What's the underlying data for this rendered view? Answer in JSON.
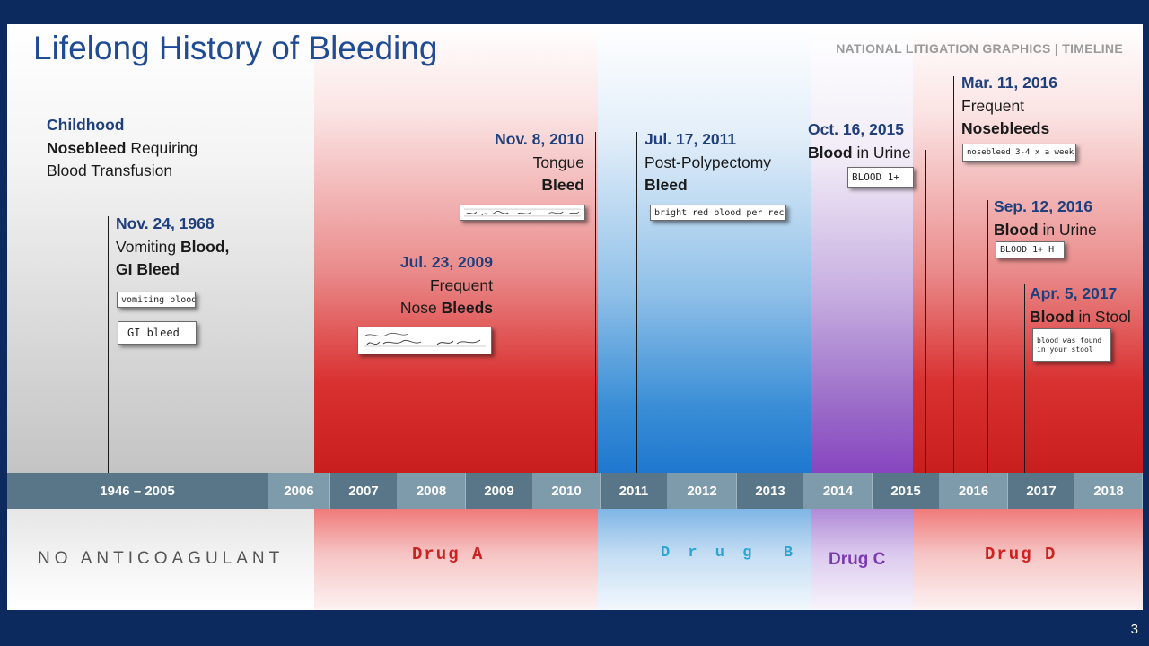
{
  "title": "Lifelong History of Bleeding",
  "brand": "NATIONAL LITIGATION GRAPHICS  | TIMELINE",
  "page_number": "3",
  "colors": {
    "frame": "#0d2a5e",
    "title": "#1f4a94",
    "no_anticoagulant": "#c4c4c4",
    "drug_a": "#c81e1e",
    "drug_b": "#1f78cf",
    "drug_c": "#8745c0",
    "drug_d": "#c81e1e",
    "axis_dark": "#587688",
    "axis_light": "#7e9bac"
  },
  "axis": {
    "labels": [
      "1946 – 2005",
      "2006",
      "2007",
      "2008",
      "2009",
      "2010",
      "2011",
      "2012",
      "2013",
      "2014",
      "2015",
      "2016",
      "2017",
      "2018"
    ]
  },
  "periods": {
    "none": "NO ANTICOAGULANT",
    "drug_a": "Drug A",
    "drug_b": "D r u g  B",
    "drug_c": "Drug C",
    "drug_d": "Drug D"
  },
  "events": {
    "childhood": {
      "date": "Childhood",
      "line1_bold": "Nosebleed",
      "line1_rest": " Requiring",
      "line2": "Blood Transfusion"
    },
    "e1968": {
      "date": "Nov. 24, 1968",
      "line1_plain": "Vomiting ",
      "line1_bold": "Blood,",
      "line2_bold": "GI Bleed",
      "snip1": "vomiting blood",
      "snip2": "GI bleed"
    },
    "e2009": {
      "date": "Jul. 23, 2009",
      "line1": "Frequent",
      "line2_plain": "Nose ",
      "line2_bold": "Bleeds"
    },
    "e2010": {
      "date": "Nov. 8, 2010",
      "line1": "Tongue",
      "line2_bold": "Bleed"
    },
    "e2011": {
      "date": "Jul. 17, 2011",
      "line1": "Post-Polypectomy",
      "line2_bold": "Bleed",
      "snip": "bright red blood per rectum"
    },
    "e2015": {
      "date": "Oct. 16, 2015",
      "line1_bold": "Blood",
      "line1_rest": " in Urine",
      "snip": "BLOOD 1+"
    },
    "e2016mar": {
      "date": "Mar. 11, 2016",
      "line1": "Frequent",
      "line2_bold": "Nosebleeds",
      "snip": "nosebleed 3-4 x a week"
    },
    "e2016sep": {
      "date": "Sep. 12, 2016",
      "line1_bold": "Blood",
      "line1_rest": " in Urine",
      "snip": "BLOOD 1+ H"
    },
    "e2017": {
      "date": "Apr. 5, 2017",
      "line1_bold": "Blood",
      "line1_rest": " in Stool",
      "snip_l1": "blood was found",
      "snip_l2": "in your stool"
    }
  }
}
